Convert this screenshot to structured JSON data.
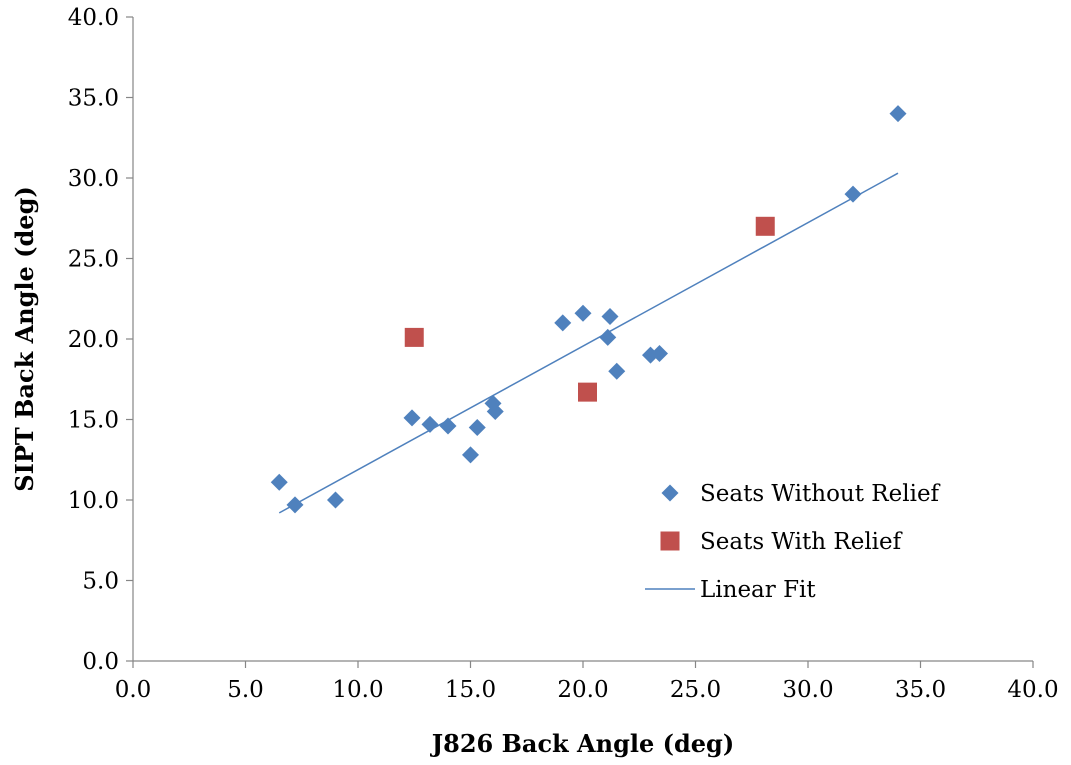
{
  "chart_data": {
    "type": "scatter",
    "title": "",
    "xlabel": "J826 Back Angle (deg)",
    "ylabel": "SIPT Back Angle (deg)",
    "xlim": [
      0,
      40
    ],
    "ylim": [
      0,
      40
    ],
    "x_ticks": [
      "0.0",
      "5.0",
      "10.0",
      "15.0",
      "20.0",
      "25.0",
      "30.0",
      "35.0",
      "40.0"
    ],
    "y_ticks": [
      "0.0",
      "5.0",
      "10.0",
      "15.0",
      "20.0",
      "25.0",
      "30.0",
      "35.0",
      "40.0"
    ],
    "grid": false,
    "legend_position": "right",
    "series": [
      {
        "name": "Seats Without Relief",
        "marker": "diamond",
        "color": "#4f81bd",
        "points": [
          [
            6.5,
            11.1
          ],
          [
            7.2,
            9.7
          ],
          [
            9.0,
            10.0
          ],
          [
            12.4,
            15.1
          ],
          [
            13.2,
            14.7
          ],
          [
            14.0,
            14.6
          ],
          [
            15.0,
            12.8
          ],
          [
            15.3,
            14.5
          ],
          [
            16.0,
            16.0
          ],
          [
            16.1,
            15.5
          ],
          [
            19.1,
            21.0
          ],
          [
            20.0,
            21.6
          ],
          [
            21.1,
            20.1
          ],
          [
            21.2,
            21.4
          ],
          [
            21.5,
            18.0
          ],
          [
            23.0,
            19.0
          ],
          [
            23.4,
            19.1
          ],
          [
            32.0,
            29.0
          ],
          [
            34.0,
            34.0
          ]
        ]
      },
      {
        "name": "Seats With Relief",
        "marker": "square",
        "color": "#c0504d",
        "points": [
          [
            12.5,
            20.1
          ],
          [
            20.2,
            16.7
          ],
          [
            28.1,
            27.0
          ]
        ]
      },
      {
        "name": "Linear Fit",
        "type": "line",
        "color": "#4f81bd",
        "points": [
          [
            6.5,
            9.2
          ],
          [
            34.0,
            30.3
          ]
        ]
      }
    ]
  }
}
